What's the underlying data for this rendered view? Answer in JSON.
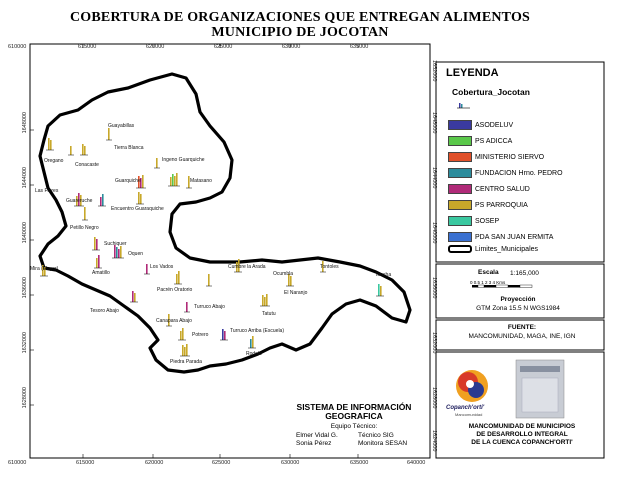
{
  "title": {
    "line1": "COBERTURA DE ORGANIZACIONES QUE ENTREGAN ALIMENTOS",
    "line2": "MUNICIPIO DE JOCOTAN"
  },
  "grid": {
    "x_ticks": [
      "610000",
      "615000",
      "620000",
      "625000",
      "630000",
      "635000",
      "640000"
    ],
    "y_ticks": [
      "1648000",
      "1644000",
      "1640000",
      "1636000",
      "1632000",
      "1628000"
    ],
    "y_ticks_right": [
      "1652000",
      "1648000",
      "1644000",
      "1640000",
      "1636000",
      "1632000",
      "1628000"
    ],
    "corner_right_bottom": "1624000"
  },
  "legend": {
    "title": "LEYENDA",
    "subtitle": "Cobertura_Jocotan",
    "items": [
      {
        "label": "ASODELUV",
        "color": "#3a3aa0"
      },
      {
        "label": "PS ADICCA",
        "color": "#5ac84a"
      },
      {
        "label": "MINISTERIO SIERVO",
        "color": "#e0502a"
      },
      {
        "label": "FUNDACION Hrno. PEDRO",
        "color": "#2c8c9c"
      },
      {
        "label": "CENTRO SALUD",
        "color": "#b02a78"
      },
      {
        "label": "PS PARROQUIA",
        "color": "#c8a82a"
      },
      {
        "label": "SOSEP",
        "color": "#3ac8a0"
      },
      {
        "label": "PDA SAN JUAN ERMITA",
        "color": "#3a70d0"
      },
      {
        "label": "Limites_Municipales",
        "color": "#ffffff"
      }
    ]
  },
  "scale": {
    "title": "Escala",
    "value": "1:165,000",
    "numbers": "0 0.5 1      2      3      4",
    "unit": "Kms"
  },
  "projection": {
    "title": "Proyección",
    "value": "GTM Zona 15.5 N WGS1984"
  },
  "source": {
    "title": "FUENTE:",
    "value": "MANCOMUNIDAD, MAGA, INE, IGN"
  },
  "system": {
    "title_line1": "SISTEMA DE INFORMACIÓN",
    "title_line2": "GEOGRAFICA",
    "team_label": "Equipo Técnico:",
    "members": [
      {
        "name": "Elmer Vidal G.",
        "role": "Técnico SIG"
      },
      {
        "name": "Sonia Pérez",
        "role": "Monitora SESAN"
      }
    ]
  },
  "logos": {
    "copanch_label": "Copanch'orti'",
    "copanch_sub": "Mancomunidad",
    "sesan_label": "SESAN"
  },
  "mancomunidad": {
    "line1": "MANCOMUNIDAD DE MUNICIPIOS",
    "line2": "DE DESARROLLO INTEGRAL",
    "line3": "DE LA CUENCA COPANCH'ORTI'"
  },
  "places": [
    {
      "name": "Guayabillas"
    },
    {
      "name": "Tierra Blanca"
    },
    {
      "name": "Oregano"
    },
    {
      "name": "Conacaste"
    },
    {
      "name": "Ingeno Guarquiche"
    },
    {
      "name": "Guarquiche"
    },
    {
      "name": "Matasano"
    },
    {
      "name": "Las Flores"
    },
    {
      "name": "Guareruche"
    },
    {
      "name": "Encuentro Guaraquiche"
    },
    {
      "name": "Petillo Negro"
    },
    {
      "name": "Suchiquer"
    },
    {
      "name": "Oquen"
    },
    {
      "name": "Amatillo"
    },
    {
      "name": "Los Vados"
    },
    {
      "name": "Cumbre la Arada"
    },
    {
      "name": "Tontoles"
    },
    {
      "name": "Ocumbla"
    },
    {
      "name": "Tansha"
    },
    {
      "name": "Pacrén Oratorio"
    },
    {
      "name": "Tatutu"
    },
    {
      "name": "El Naranjo"
    },
    {
      "name": "Mira (Mayor)"
    },
    {
      "name": "Tesoro Abajo"
    },
    {
      "name": "Turruco Abajo"
    },
    {
      "name": "Canapara Abajo"
    },
    {
      "name": "Potrero"
    },
    {
      "name": "Turruco Arriba (Escuela)"
    },
    {
      "name": "Rodelo"
    },
    {
      "name": "Piedra Parada"
    }
  ]
}
